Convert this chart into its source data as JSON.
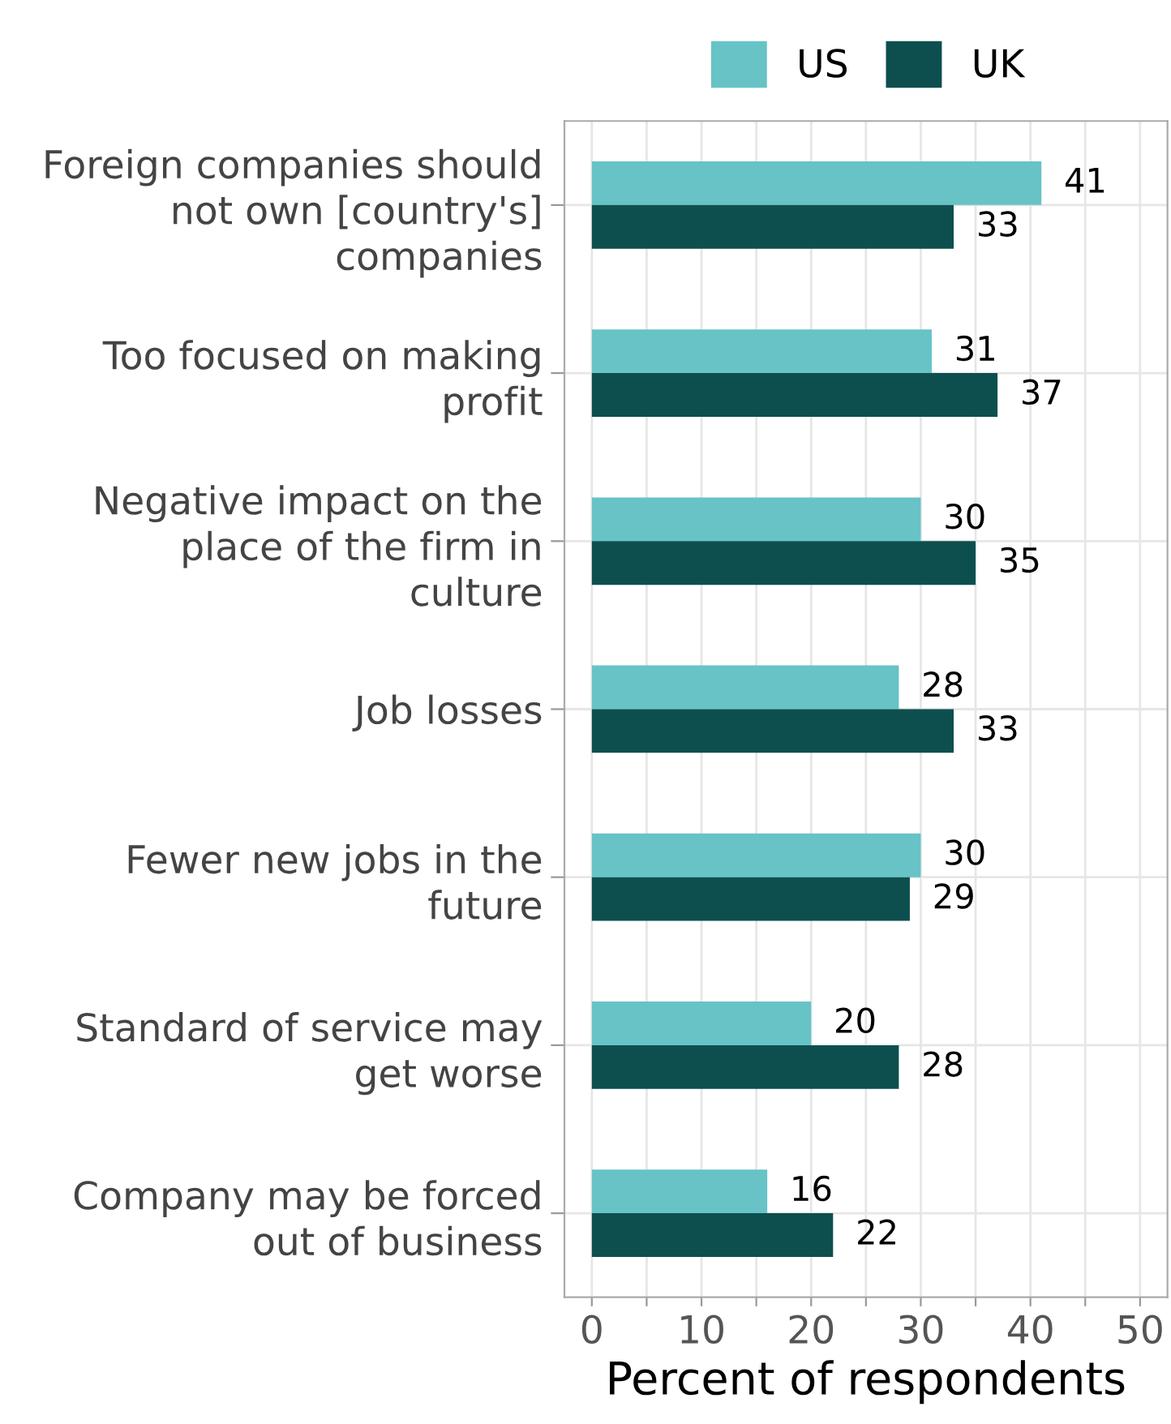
{
  "chart_data": {
    "type": "bar",
    "orientation": "horizontal",
    "xlabel": "Percent of respondents",
    "categories": [
      "Foreign companies should\nnot own [country's]\ncompanies",
      "Too focused on making\nprofit",
      "Negative impact on the\nplace of the firm in\nculture",
      "Job losses",
      "Fewer new jobs in the\nfuture",
      "Standard of service may\nget worse",
      "Company may be forced\nout of business"
    ],
    "series": [
      {
        "name": "US",
        "color": "#67c3c6",
        "values": [
          41,
          31,
          30,
          28,
          30,
          20,
          16
        ]
      },
      {
        "name": "UK",
        "color": "#0d4f4f",
        "values": [
          33,
          37,
          35,
          33,
          29,
          28,
          22
        ]
      }
    ],
    "xlim": [
      -2.5,
      52.5
    ],
    "xticks": [
      0,
      {
        "value": 5,
        "label": null
      },
      10,
      {
        "value": 15,
        "label": null
      },
      20,
      {
        "value": 25,
        "label": null
      },
      30,
      {
        "value": 35,
        "label": null
      },
      40,
      {
        "value": 45,
        "label": null
      },
      50
    ],
    "grid": true,
    "legend": "top right",
    "data_labels": true
  }
}
